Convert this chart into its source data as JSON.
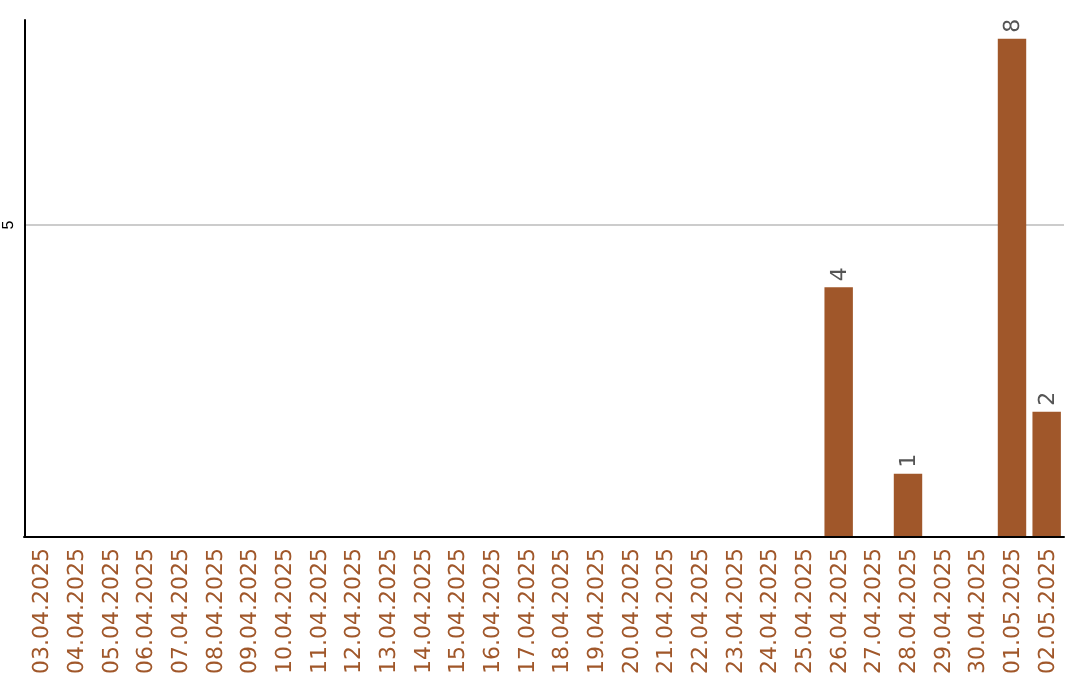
{
  "chart_data": {
    "type": "bar",
    "categories": [
      "03.04.2025",
      "04.04.2025",
      "05.04.2025",
      "06.04.2025",
      "07.04.2025",
      "08.04.2025",
      "09.04.2025",
      "10.04.2025",
      "11.04.2025",
      "12.04.2025",
      "13.04.2025",
      "14.04.2025",
      "15.04.2025",
      "16.04.2025",
      "17.04.2025",
      "18.04.2025",
      "19.04.2025",
      "20.04.2025",
      "21.04.2025",
      "22.04.2025",
      "23.04.2025",
      "24.04.2025",
      "25.04.2025",
      "26.04.2025",
      "27.04.2025",
      "28.04.2025",
      "29.04.2025",
      "30.04.2025",
      "01.05.2025",
      "02.05.2025"
    ],
    "values": [
      null,
      null,
      null,
      null,
      null,
      null,
      null,
      null,
      null,
      null,
      null,
      null,
      null,
      null,
      null,
      null,
      null,
      null,
      null,
      null,
      null,
      null,
      null,
      4,
      null,
      1,
      null,
      null,
      8,
      2
    ],
    "value_labels": [
      null,
      null,
      null,
      null,
      null,
      null,
      null,
      null,
      null,
      null,
      null,
      null,
      null,
      null,
      null,
      null,
      null,
      null,
      null,
      null,
      null,
      null,
      null,
      "4",
      null,
      "1",
      null,
      null,
      "8",
      "2"
    ],
    "color": "#a0572a",
    "ylim": [
      0,
      8.3
    ],
    "yticks": [
      5
    ],
    "grid": "y"
  }
}
